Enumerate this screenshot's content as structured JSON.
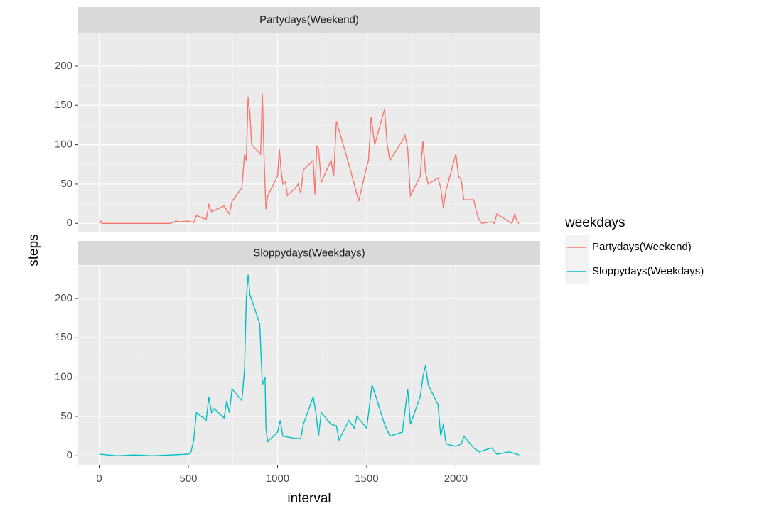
{
  "chart_data": [
    {
      "type": "line",
      "title": "Partydays(Weekend)",
      "ylabel": "steps",
      "legend_title": "weekdays",
      "x": [
        0,
        10,
        15,
        100,
        200,
        300,
        400,
        430,
        450,
        500,
        530,
        545,
        600,
        615,
        630,
        700,
        730,
        745,
        800,
        815,
        825,
        835,
        845,
        855,
        905,
        915,
        925,
        935,
        945,
        1000,
        1010,
        1020,
        1030,
        1045,
        1055,
        1100,
        1115,
        1130,
        1145,
        1200,
        1210,
        1220,
        1230,
        1245,
        1300,
        1315,
        1330,
        1400,
        1430,
        1455,
        1500,
        1510,
        1525,
        1545,
        1600,
        1615,
        1630,
        1700,
        1715,
        1730,
        1745,
        1800,
        1815,
        1830,
        1845,
        1900,
        1915,
        1930,
        1945,
        2000,
        2015,
        2030,
        2045,
        2100,
        2115,
        2130,
        2145,
        2200,
        2215,
        2230,
        2300,
        2315,
        2330,
        2345,
        2355
      ],
      "series": [
        {
          "name": "Partydays(Weekend)",
          "color": "#F8766D",
          "values": [
            0,
            3,
            0,
            0,
            0,
            0,
            0,
            3,
            2,
            3,
            1,
            10,
            5,
            24,
            15,
            22,
            12,
            28,
            45,
            88,
            80,
            160,
            140,
            100,
            88,
            165,
            80,
            18,
            35,
            60,
            95,
            68,
            50,
            53,
            35,
            45,
            50,
            38,
            68,
            80,
            37,
            98,
            95,
            52,
            80,
            60,
            130,
            75,
            50,
            28,
            72,
            80,
            135,
            100,
            145,
            100,
            80,
            105,
            112,
            95,
            35,
            60,
            105,
            65,
            50,
            58,
            45,
            20,
            42,
            88,
            60,
            55,
            30,
            30,
            15,
            5,
            0,
            2,
            0,
            12,
            2,
            0,
            12,
            1,
            0
          ]
        }
      ],
      "xlim": [
        -117.75,
        2472.75
      ],
      "ylim": [
        -11.5,
        241.5
      ],
      "xticks": [
        0,
        500,
        1000,
        1500,
        2000
      ],
      "yticks": [
        0,
        50,
        100,
        150,
        200
      ],
      "grid": true
    },
    {
      "type": "line",
      "title": "Sloppydays(Weekdays)",
      "xlabel": "interval",
      "x": [
        0,
        100,
        200,
        300,
        400,
        500,
        515,
        530,
        545,
        600,
        615,
        630,
        645,
        700,
        715,
        730,
        745,
        800,
        815,
        825,
        835,
        845,
        900,
        915,
        930,
        935,
        945,
        1000,
        1015,
        1030,
        1100,
        1130,
        1145,
        1200,
        1215,
        1230,
        1245,
        1300,
        1330,
        1345,
        1400,
        1430,
        1445,
        1500,
        1530,
        1545,
        1600,
        1630,
        1700,
        1730,
        1745,
        1800,
        1815,
        1830,
        1845,
        1900,
        1915,
        1930,
        1945,
        2000,
        2030,
        2045,
        2100,
        2130,
        2200,
        2230,
        2300,
        2355
      ],
      "series": [
        {
          "name": "Sloppydays(Weekdays)",
          "color": "#00BFC4",
          "values": [
            2,
            0,
            1,
            0,
            1,
            2,
            5,
            20,
            55,
            45,
            75,
            55,
            60,
            48,
            70,
            55,
            85,
            70,
            110,
            200,
            230,
            205,
            168,
            90,
            100,
            35,
            18,
            30,
            45,
            25,
            22,
            22,
            40,
            75,
            55,
            25,
            55,
            40,
            38,
            20,
            45,
            35,
            50,
            35,
            90,
            80,
            40,
            25,
            30,
            85,
            40,
            75,
            100,
            115,
            90,
            65,
            25,
            40,
            15,
            12,
            15,
            25,
            10,
            5,
            10,
            2,
            5,
            1
          ]
        }
      ],
      "xlim": [
        -117.75,
        2472.75
      ],
      "ylim": [
        -11.5,
        241.5
      ],
      "xticks": [
        0,
        500,
        1000,
        1500,
        2000
      ],
      "yticks": [
        0,
        50,
        100,
        150,
        200
      ],
      "grid": true
    }
  ]
}
